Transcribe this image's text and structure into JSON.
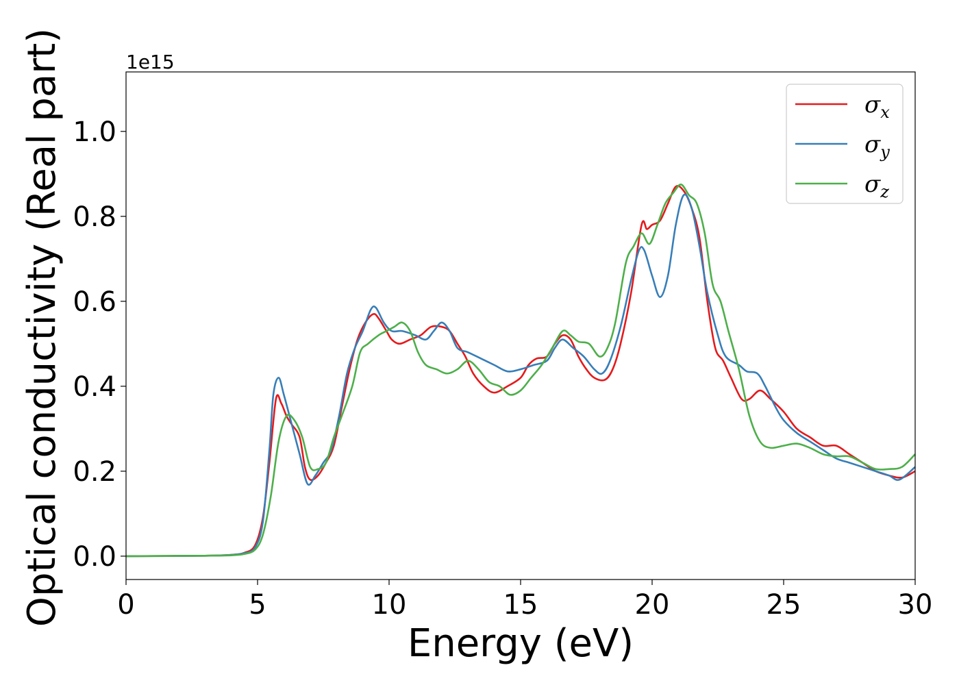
{
  "chart_data": {
    "type": "line",
    "xlabel": "Energy (eV)",
    "ylabel": "Optical conductivity (Real part)",
    "offset_text": "1e15",
    "xlim": [
      0,
      30
    ],
    "ylim": [
      -0.055,
      1.14
    ],
    "scale": 1000000000000000.0,
    "xticks": [
      "0",
      "5",
      "10",
      "15",
      "20",
      "25",
      "30"
    ],
    "yticks": [
      "0.0",
      "0.2",
      "0.4",
      "0.6",
      "0.8",
      "1.0"
    ],
    "grid": false,
    "legend_position": "top-right",
    "series": [
      {
        "symbol": "σ",
        "subscript": "x",
        "color": "#e41a1c",
        "points": [
          [
            0,
            0
          ],
          [
            3,
            0.001
          ],
          [
            4,
            0.003
          ],
          [
            4.5,
            0.008
          ],
          [
            4.9,
            0.025
          ],
          [
            5.2,
            0.09
          ],
          [
            5.45,
            0.22
          ],
          [
            5.7,
            0.37
          ],
          [
            5.9,
            0.36
          ],
          [
            6.1,
            0.33
          ],
          [
            6.3,
            0.31
          ],
          [
            6.6,
            0.28
          ],
          [
            6.8,
            0.21
          ],
          [
            7.0,
            0.18
          ],
          [
            7.3,
            0.19
          ],
          [
            7.6,
            0.22
          ],
          [
            7.9,
            0.26
          ],
          [
            8.2,
            0.35
          ],
          [
            8.5,
            0.44
          ],
          [
            8.8,
            0.51
          ],
          [
            9.1,
            0.55
          ],
          [
            9.4,
            0.57
          ],
          [
            9.6,
            0.56
          ],
          [
            9.9,
            0.53
          ],
          [
            10.1,
            0.51
          ],
          [
            10.4,
            0.5
          ],
          [
            10.8,
            0.51
          ],
          [
            11.2,
            0.52
          ],
          [
            11.6,
            0.54
          ],
          [
            12.0,
            0.54
          ],
          [
            12.3,
            0.53
          ],
          [
            12.6,
            0.5
          ],
          [
            12.9,
            0.47
          ],
          [
            13.2,
            0.43
          ],
          [
            13.6,
            0.4
          ],
          [
            14.0,
            0.385
          ],
          [
            14.5,
            0.4
          ],
          [
            15.0,
            0.42
          ],
          [
            15.3,
            0.45
          ],
          [
            15.6,
            0.465
          ],
          [
            16.0,
            0.47
          ],
          [
            16.3,
            0.5
          ],
          [
            16.6,
            0.52
          ],
          [
            16.9,
            0.51
          ],
          [
            17.2,
            0.47
          ],
          [
            17.5,
            0.44
          ],
          [
            17.8,
            0.42
          ],
          [
            18.2,
            0.415
          ],
          [
            18.5,
            0.44
          ],
          [
            18.8,
            0.5
          ],
          [
            19.2,
            0.62
          ],
          [
            19.6,
            0.78
          ],
          [
            19.8,
            0.77
          ],
          [
            20.0,
            0.78
          ],
          [
            20.3,
            0.79
          ],
          [
            20.6,
            0.83
          ],
          [
            20.9,
            0.87
          ],
          [
            21.2,
            0.86
          ],
          [
            21.5,
            0.82
          ],
          [
            21.8,
            0.75
          ],
          [
            22.1,
            0.6
          ],
          [
            22.4,
            0.49
          ],
          [
            22.7,
            0.46
          ],
          [
            23.0,
            0.42
          ],
          [
            23.4,
            0.37
          ],
          [
            23.7,
            0.37
          ],
          [
            24.1,
            0.39
          ],
          [
            24.5,
            0.37
          ],
          [
            25.0,
            0.34
          ],
          [
            25.5,
            0.3
          ],
          [
            26.0,
            0.28
          ],
          [
            26.5,
            0.26
          ],
          [
            27.0,
            0.26
          ],
          [
            27.5,
            0.24
          ],
          [
            28.0,
            0.22
          ],
          [
            28.5,
            0.2
          ],
          [
            29.0,
            0.19
          ],
          [
            29.5,
            0.185
          ],
          [
            30.0,
            0.2
          ]
        ]
      },
      {
        "symbol": "σ",
        "subscript": "y",
        "color": "#377eb8",
        "points": [
          [
            0,
            0
          ],
          [
            3,
            0.001
          ],
          [
            4,
            0.003
          ],
          [
            4.5,
            0.007
          ],
          [
            4.9,
            0.02
          ],
          [
            5.2,
            0.08
          ],
          [
            5.45,
            0.25
          ],
          [
            5.6,
            0.38
          ],
          [
            5.8,
            0.42
          ],
          [
            6.0,
            0.38
          ],
          [
            6.3,
            0.31
          ],
          [
            6.6,
            0.24
          ],
          [
            6.9,
            0.17
          ],
          [
            7.2,
            0.19
          ],
          [
            7.5,
            0.22
          ],
          [
            7.8,
            0.25
          ],
          [
            8.1,
            0.33
          ],
          [
            8.4,
            0.43
          ],
          [
            8.7,
            0.49
          ],
          [
            9.0,
            0.53
          ],
          [
            9.3,
            0.58
          ],
          [
            9.5,
            0.585
          ],
          [
            9.8,
            0.55
          ],
          [
            10.1,
            0.53
          ],
          [
            10.5,
            0.53
          ],
          [
            11.0,
            0.52
          ],
          [
            11.4,
            0.51
          ],
          [
            11.7,
            0.53
          ],
          [
            12.0,
            0.55
          ],
          [
            12.3,
            0.53
          ],
          [
            12.6,
            0.49
          ],
          [
            13.0,
            0.48
          ],
          [
            13.5,
            0.465
          ],
          [
            14.0,
            0.45
          ],
          [
            14.5,
            0.435
          ],
          [
            15.0,
            0.44
          ],
          [
            15.5,
            0.45
          ],
          [
            16.0,
            0.46
          ],
          [
            16.3,
            0.49
          ],
          [
            16.6,
            0.51
          ],
          [
            17.0,
            0.49
          ],
          [
            17.4,
            0.47
          ],
          [
            17.8,
            0.44
          ],
          [
            18.1,
            0.43
          ],
          [
            18.4,
            0.46
          ],
          [
            18.8,
            0.54
          ],
          [
            19.2,
            0.65
          ],
          [
            19.5,
            0.72
          ],
          [
            19.7,
            0.72
          ],
          [
            20.0,
            0.66
          ],
          [
            20.3,
            0.61
          ],
          [
            20.6,
            0.66
          ],
          [
            20.9,
            0.78
          ],
          [
            21.2,
            0.85
          ],
          [
            21.5,
            0.82
          ],
          [
            21.8,
            0.73
          ],
          [
            22.1,
            0.62
          ],
          [
            22.5,
            0.52
          ],
          [
            22.8,
            0.47
          ],
          [
            23.3,
            0.45
          ],
          [
            23.6,
            0.435
          ],
          [
            24.0,
            0.43
          ],
          [
            24.3,
            0.4
          ],
          [
            24.7,
            0.35
          ],
          [
            25.0,
            0.32
          ],
          [
            25.5,
            0.29
          ],
          [
            26.0,
            0.27
          ],
          [
            26.5,
            0.25
          ],
          [
            27.0,
            0.23
          ],
          [
            27.5,
            0.22
          ],
          [
            28.0,
            0.21
          ],
          [
            28.5,
            0.2
          ],
          [
            29.0,
            0.19
          ],
          [
            29.4,
            0.18
          ],
          [
            30.0,
            0.21
          ]
        ]
      },
      {
        "symbol": "σ",
        "subscript": "z",
        "color": "#4daf4a",
        "points": [
          [
            0,
            0
          ],
          [
            3,
            0.001
          ],
          [
            4,
            0.002
          ],
          [
            4.5,
            0.005
          ],
          [
            4.9,
            0.015
          ],
          [
            5.2,
            0.05
          ],
          [
            5.5,
            0.14
          ],
          [
            5.8,
            0.27
          ],
          [
            6.1,
            0.33
          ],
          [
            6.4,
            0.32
          ],
          [
            6.7,
            0.28
          ],
          [
            7.0,
            0.21
          ],
          [
            7.3,
            0.205
          ],
          [
            7.6,
            0.22
          ],
          [
            7.9,
            0.28
          ],
          [
            8.2,
            0.33
          ],
          [
            8.6,
            0.4
          ],
          [
            8.9,
            0.48
          ],
          [
            9.2,
            0.5
          ],
          [
            9.6,
            0.52
          ],
          [
            9.9,
            0.53
          ],
          [
            10.2,
            0.54
          ],
          [
            10.5,
            0.55
          ],
          [
            10.8,
            0.53
          ],
          [
            11.1,
            0.48
          ],
          [
            11.4,
            0.45
          ],
          [
            11.8,
            0.44
          ],
          [
            12.2,
            0.43
          ],
          [
            12.6,
            0.44
          ],
          [
            13.0,
            0.46
          ],
          [
            13.4,
            0.44
          ],
          [
            13.8,
            0.41
          ],
          [
            14.2,
            0.4
          ],
          [
            14.6,
            0.38
          ],
          [
            15.0,
            0.39
          ],
          [
            15.4,
            0.42
          ],
          [
            15.8,
            0.45
          ],
          [
            16.2,
            0.49
          ],
          [
            16.6,
            0.53
          ],
          [
            16.9,
            0.52
          ],
          [
            17.2,
            0.505
          ],
          [
            17.6,
            0.5
          ],
          [
            18.0,
            0.47
          ],
          [
            18.3,
            0.49
          ],
          [
            18.6,
            0.55
          ],
          [
            19.0,
            0.69
          ],
          [
            19.3,
            0.73
          ],
          [
            19.6,
            0.76
          ],
          [
            19.9,
            0.735
          ],
          [
            20.2,
            0.78
          ],
          [
            20.5,
            0.83
          ],
          [
            20.8,
            0.855
          ],
          [
            21.1,
            0.875
          ],
          [
            21.4,
            0.85
          ],
          [
            21.7,
            0.83
          ],
          [
            22.0,
            0.76
          ],
          [
            22.3,
            0.64
          ],
          [
            22.6,
            0.6
          ],
          [
            22.9,
            0.53
          ],
          [
            23.3,
            0.44
          ],
          [
            23.7,
            0.33
          ],
          [
            24.1,
            0.27
          ],
          [
            24.5,
            0.255
          ],
          [
            25.0,
            0.26
          ],
          [
            25.5,
            0.265
          ],
          [
            26.0,
            0.255
          ],
          [
            26.5,
            0.24
          ],
          [
            27.0,
            0.235
          ],
          [
            27.5,
            0.235
          ],
          [
            28.0,
            0.22
          ],
          [
            28.5,
            0.205
          ],
          [
            29.0,
            0.205
          ],
          [
            29.5,
            0.21
          ],
          [
            30.0,
            0.24
          ]
        ]
      }
    ]
  }
}
